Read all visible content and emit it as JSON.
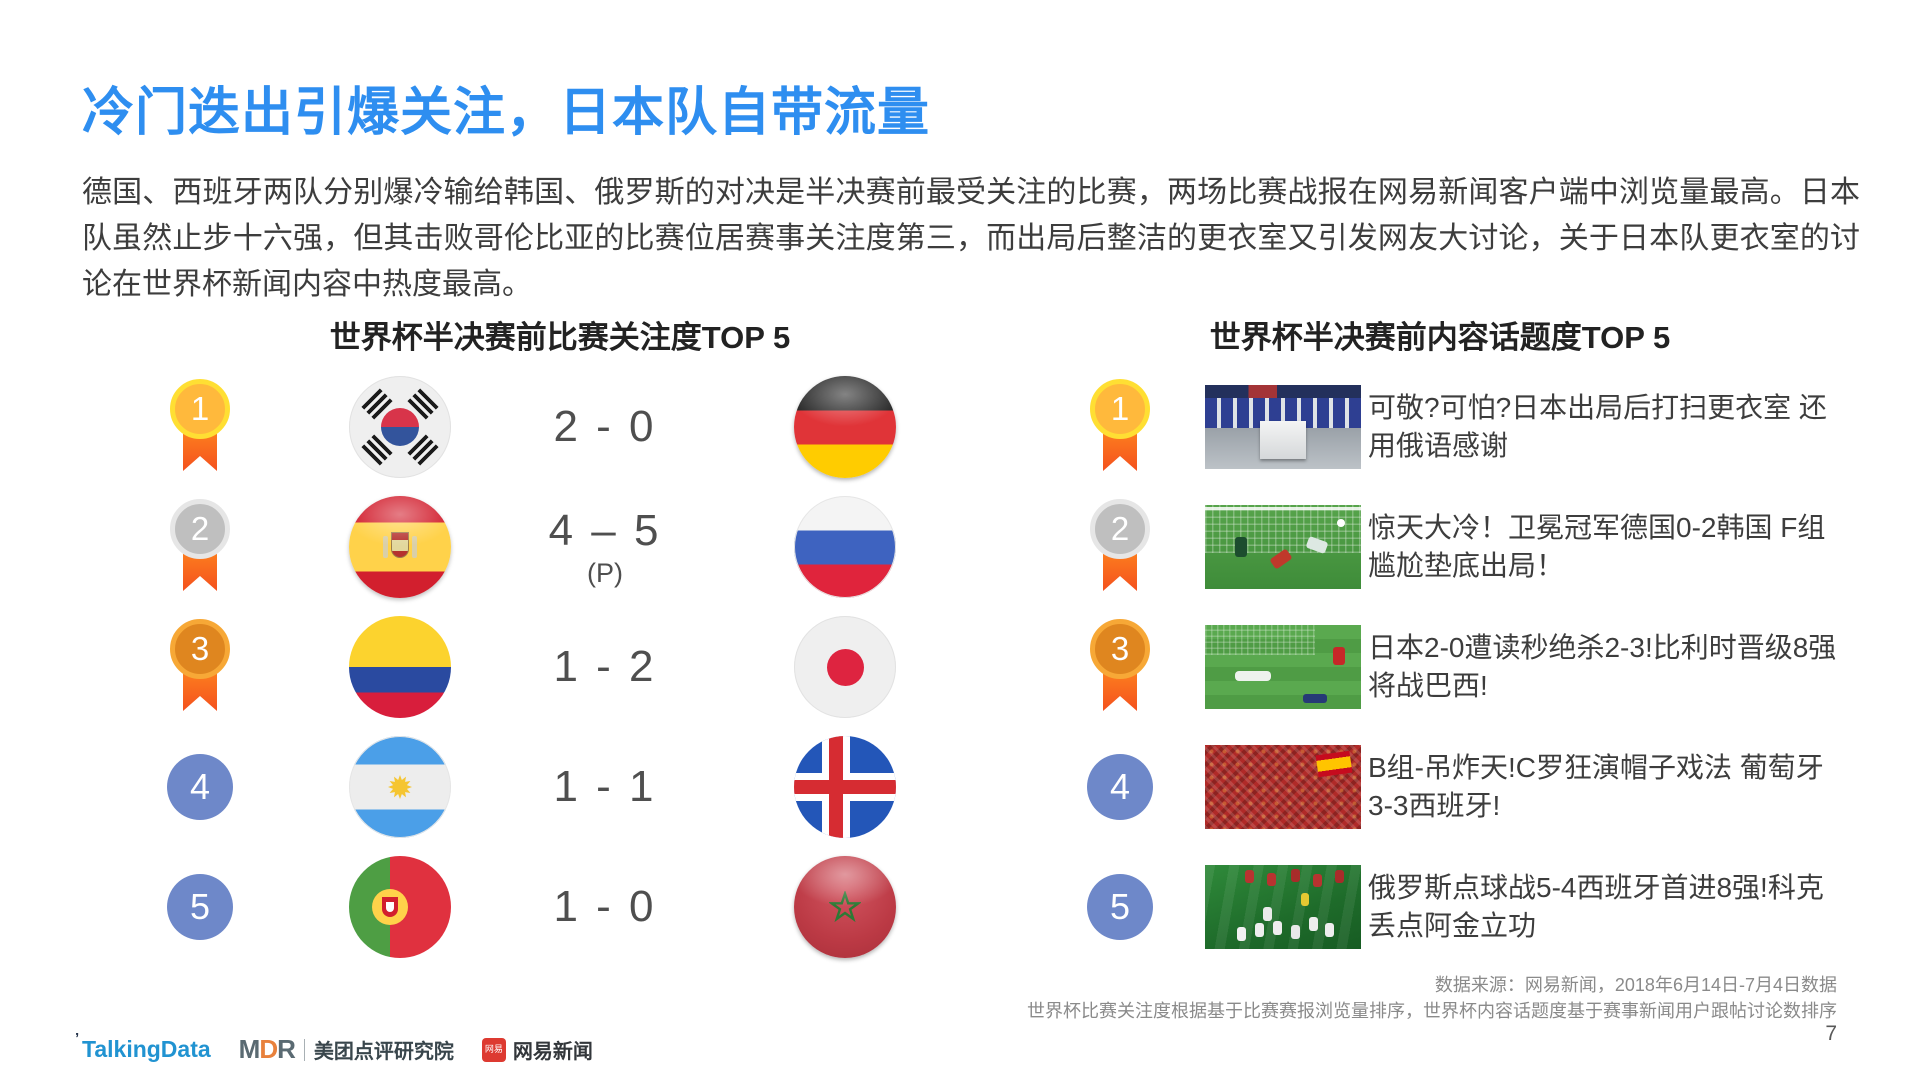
{
  "slide": {
    "title": "冷门迭出引爆关注，日本队自带流量",
    "body": "德国、西班牙两队分别爆冷输给韩国、俄罗斯的对决是半决赛前最受关注的比赛，两场比赛战报在网易新闻客户端中浏览量最高。日本队虽然止步十六强，但其击败哥伦比亚的比赛位居赛事关注度第三，而出局后整洁的更衣室又引发网友大讨论，关于日本队更衣室的讨论在世界杯新闻内容中热度最高。",
    "page_number": "7"
  },
  "left_panel": {
    "title": "世界杯半决赛前比赛关注度TOP 5",
    "rows": [
      {
        "rank": "1",
        "team_a": "south-korea",
        "score": "2 - 0",
        "note": "",
        "team_b": "germany"
      },
      {
        "rank": "2",
        "team_a": "spain",
        "score": "4 – 5",
        "note": "(P)",
        "team_b": "russia"
      },
      {
        "rank": "3",
        "team_a": "colombia",
        "score": "1 - 2",
        "note": "",
        "team_b": "japan"
      },
      {
        "rank": "4",
        "team_a": "argentina",
        "score": "1 - 1",
        "note": "",
        "team_b": "iceland"
      },
      {
        "rank": "5",
        "team_a": "portugal",
        "score": "1 - 0",
        "note": "",
        "team_b": "morocco"
      }
    ]
  },
  "right_panel": {
    "title": "世界杯半决赛前内容话题度TOP 5",
    "rows": [
      {
        "rank": "1",
        "thumbnail": "japan-dressing-room",
        "headline": "可敬?可怕?日本出局后打扫更衣室 还用俄语感谢"
      },
      {
        "rank": "2",
        "thumbnail": "germany-korea-match",
        "headline": "惊天大冷！卫冕冠军德国0-2韩国 F组尴尬垫底出局！"
      },
      {
        "rank": "3",
        "thumbnail": "japan-belgium-match",
        "headline": "日本2-0遭读秒绝杀2-3!比利时晋级8强将战巴西!"
      },
      {
        "rank": "4",
        "thumbnail": "portugal-spain-fans",
        "headline": "B组-吊炸天!C罗狂演帽子戏法 葡萄牙3-3西班牙!"
      },
      {
        "rank": "5",
        "thumbnail": "russia-spain-penalties",
        "headline": "俄罗斯点球战5-4西班牙首进8强!科克丢点阿金立功"
      }
    ]
  },
  "footer": {
    "source_line1": "数据来源：网易新闻，2018年6月14日-7月4日数据",
    "source_line2": "世界杯比赛关注度根据基于比赛赛报浏览量排序，世界杯内容话题度基于赛事新闻用户跟帖讨论数排序",
    "logos": {
      "talkingdata": "TalkingData",
      "mdr": "MDR",
      "meituan": "美团点评研究院",
      "netease_badge": "网易",
      "netease": "网易新闻"
    }
  },
  "colors": {
    "title_blue": "#2e8ef0",
    "rank_blue": "#6e88c9",
    "medal_gold": "#ffb93c",
    "medal_silver": "#bfbfbf",
    "medal_bronze": "#df861f",
    "ribbon_orange": "#f4511e",
    "body_text": "#3d3d3d"
  }
}
